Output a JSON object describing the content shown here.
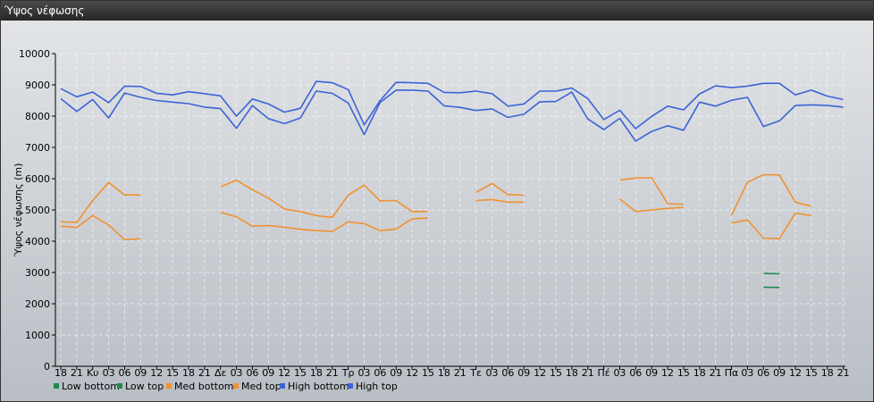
{
  "window": {
    "title": "Ύψος νέφωσης"
  },
  "chart_data": {
    "type": "line",
    "ylabel": "Ύψος νέφωσης (m)",
    "ylim": [
      0,
      10000
    ],
    "yticks": [
      0,
      1000,
      2000,
      3000,
      4000,
      5000,
      6000,
      7000,
      8000,
      9000,
      10000
    ],
    "grid": true,
    "legend_position": "bottom-left",
    "categories": [
      "18",
      "21",
      "Κυ",
      "03",
      "06",
      "09",
      "12",
      "15",
      "18",
      "21",
      "Δε",
      "03",
      "06",
      "09",
      "12",
      "15",
      "18",
      "21",
      "Τρ",
      "03",
      "06",
      "09",
      "12",
      "15",
      "18",
      "21",
      "Τε",
      "03",
      "06",
      "09",
      "12",
      "15",
      "18",
      "21",
      "Πέ",
      "03",
      "06",
      "09",
      "12",
      "15",
      "18",
      "21",
      "Πα",
      "03",
      "06",
      "09",
      "12",
      "15",
      "18",
      "21"
    ],
    "series": [
      {
        "name": "Low bottom",
        "color": "#1f8a4c",
        "values": [
          null,
          null,
          null,
          null,
          null,
          null,
          null,
          null,
          null,
          null,
          null,
          null,
          null,
          null,
          null,
          null,
          null,
          null,
          null,
          null,
          null,
          null,
          null,
          null,
          null,
          null,
          null,
          null,
          null,
          null,
          null,
          null,
          null,
          null,
          null,
          null,
          null,
          null,
          null,
          null,
          null,
          null,
          null,
          null,
          2530,
          2520,
          null,
          null,
          null,
          null
        ]
      },
      {
        "name": "Low top",
        "color": "#1f8a4c",
        "values": [
          null,
          null,
          null,
          null,
          null,
          null,
          null,
          null,
          null,
          null,
          null,
          null,
          null,
          null,
          null,
          null,
          null,
          null,
          null,
          null,
          null,
          null,
          null,
          null,
          null,
          null,
          null,
          null,
          null,
          null,
          null,
          null,
          null,
          null,
          null,
          null,
          null,
          null,
          null,
          null,
          null,
          null,
          null,
          null,
          2970,
          2960,
          null,
          null,
          null,
          null
        ]
      },
      {
        "name": "Med bottom",
        "color": "#f0922e",
        "values": [
          4480,
          4440,
          4820,
          4520,
          4050,
          4080,
          null,
          null,
          null,
          null,
          4920,
          4780,
          4480,
          4500,
          4450,
          4380,
          4340,
          4310,
          4620,
          4560,
          4340,
          4390,
          4720,
          4740,
          null,
          null,
          5300,
          5330,
          5250,
          5250,
          null,
          null,
          null,
          null,
          null,
          5350,
          4950,
          5000,
          5050,
          5080,
          null,
          null,
          4580,
          4680,
          4100,
          4080,
          4900,
          4820,
          null,
          null
        ]
      },
      {
        "name": "Med top",
        "color": "#f0922e",
        "values": [
          4620,
          4600,
          5300,
          5880,
          5480,
          5480,
          null,
          null,
          null,
          null,
          5740,
          5950,
          5650,
          5380,
          5030,
          4950,
          4820,
          4760,
          5480,
          5790,
          5290,
          5300,
          4950,
          4950,
          null,
          null,
          5560,
          5850,
          5490,
          5470,
          null,
          null,
          null,
          null,
          null,
          5960,
          6020,
          6030,
          5200,
          5180,
          null,
          null,
          4830,
          5880,
          6130,
          6120,
          5250,
          5120,
          null,
          null
        ]
      },
      {
        "name": "High bottom",
        "color": "#3b63d6",
        "values": [
          8560,
          8150,
          8530,
          7940,
          8740,
          8600,
          8500,
          8450,
          8400,
          8290,
          8240,
          7610,
          8340,
          7920,
          7760,
          7940,
          8800,
          8730,
          8420,
          7410,
          8440,
          8830,
          8830,
          8800,
          8330,
          8280,
          8180,
          8230,
          7960,
          8060,
          8460,
          8470,
          8770,
          7910,
          7570,
          7930,
          7200,
          7510,
          7690,
          7550,
          8450,
          8320,
          8510,
          8600,
          7670,
          7850,
          8340,
          8360,
          8340,
          8290
        ]
      },
      {
        "name": "High top",
        "color": "#3b63d6",
        "values": [
          8880,
          8620,
          8770,
          8430,
          8960,
          8950,
          8730,
          8680,
          8780,
          8720,
          8650,
          8000,
          8550,
          8390,
          8130,
          8250,
          9110,
          9070,
          8850,
          7720,
          8500,
          9080,
          9070,
          9050,
          8760,
          8750,
          8800,
          8720,
          8320,
          8390,
          8800,
          8800,
          8900,
          8560,
          7890,
          8190,
          7600,
          7990,
          8320,
          8200,
          8710,
          8970,
          8910,
          8960,
          9050,
          9050,
          8680,
          8830,
          8640,
          8530
        ]
      }
    ]
  }
}
